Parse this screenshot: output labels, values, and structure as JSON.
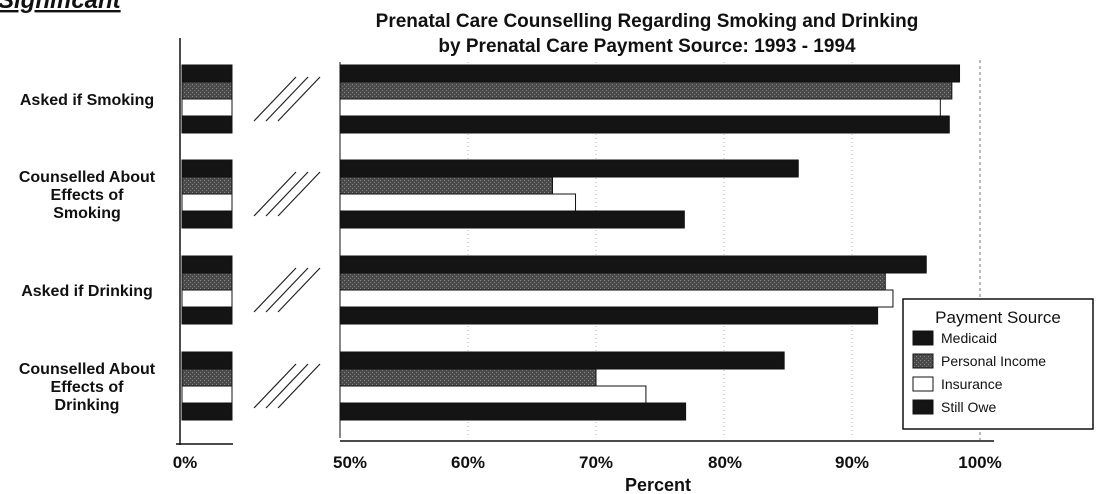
{
  "header_fragment": "Significant",
  "chart_data": {
    "type": "bar",
    "orientation": "horizontal",
    "title": "Prenatal Care Counselling Regarding Smoking and Drinking",
    "subtitle": "by Prenatal Care Payment Source: 1993 - 1994",
    "xlabel": "Percent",
    "ylabel": "",
    "xlim": [
      50,
      100
    ],
    "axis_break": "0% to 50%",
    "x_ticks": [
      "0%",
      "50%",
      "60%",
      "70%",
      "80%",
      "90%",
      "100%"
    ],
    "categories": [
      [
        "Asked if Smoking"
      ],
      [
        "Counselled About",
        "Effects of",
        "Smoking"
      ],
      [
        "Asked if Drinking"
      ],
      [
        "Counselled About",
        "Effects of",
        "Drinking"
      ]
    ],
    "series": [
      {
        "name": "Medicaid",
        "values": [
          98.4,
          85.8,
          95.8,
          84.7
        ]
      },
      {
        "name": "Personal Income",
        "values": [
          97.8,
          66.6,
          92.6,
          70.0
        ]
      },
      {
        "name": "Insurance",
        "values": [
          96.9,
          68.4,
          93.2,
          73.9
        ]
      },
      {
        "name": "Still Owe",
        "values": [
          97.6,
          76.9,
          92.0,
          77.0
        ]
      }
    ],
    "legend": {
      "title": "Payment Source",
      "position": "right"
    },
    "colors": {
      "Medicaid": "#141414",
      "Personal Income": "#3c3c3c",
      "Insurance": "#ffffff",
      "Still Owe": "#141414"
    },
    "grid": "vertical dotted"
  }
}
